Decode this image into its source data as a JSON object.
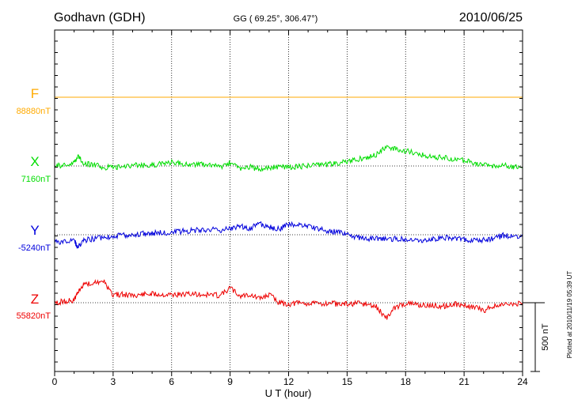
{
  "header": {
    "station": "Godhavn (GDH)",
    "coords": "GG ( 69.25°, 306.47°)",
    "date": "2010/06/25"
  },
  "footnote": "Plotted at 2010/11/19 05:39 UT",
  "colors": {
    "F": "#ffaa00",
    "X": "#00dd00",
    "Y": "#0000dd",
    "Z": "#ee0000"
  },
  "chart_data": {
    "type": "line",
    "xlabel": "U T (hour)",
    "xlim": [
      0,
      24
    ],
    "xticks": [
      "0",
      "3",
      "6",
      "9",
      "12",
      "15",
      "18",
      "21",
      "24"
    ],
    "grid": true,
    "scale_bar": {
      "label": "500 nT",
      "value_nT": 500
    },
    "x": [
      0,
      0.5,
      1,
      1.2,
      1.5,
      2,
      2.5,
      3,
      3.5,
      4,
      4.5,
      5,
      5.5,
      6,
      6.5,
      7,
      7.5,
      8,
      8.5,
      9,
      9.5,
      10,
      10.5,
      11,
      11.5,
      12,
      12.5,
      13,
      13.5,
      14,
      14.5,
      15,
      15.5,
      16,
      16.5,
      17,
      17.5,
      18,
      18.5,
      19,
      19.5,
      20,
      20.5,
      21,
      21.5,
      22,
      22.5,
      23,
      23.5,
      24
    ],
    "series": [
      {
        "name": "F",
        "baseline_label": "88880nT",
        "baseline": 88880,
        "values": [
          88880,
          88880,
          88880,
          88880,
          88880,
          88880,
          88880,
          88880,
          88880,
          88880,
          88880,
          88880,
          88880,
          88880,
          88880,
          88880,
          88880,
          88880,
          88880,
          88880,
          88880,
          88880,
          88880,
          88880,
          88880,
          88880,
          88880,
          88880,
          88880,
          88880,
          88880,
          88880,
          88880,
          88880,
          88880,
          88880,
          88880,
          88880,
          88880,
          88880,
          88880,
          88880,
          88880,
          88880,
          88880,
          88880,
          88880,
          88880,
          88880,
          88880
        ]
      },
      {
        "name": "X",
        "baseline_label": "7160nT",
        "baseline": 7160,
        "values": [
          7160,
          7165,
          7180,
          7235,
          7175,
          7170,
          7150,
          7150,
          7155,
          7165,
          7165,
          7170,
          7175,
          7185,
          7175,
          7170,
          7170,
          7165,
          7155,
          7185,
          7140,
          7155,
          7135,
          7150,
          7150,
          7150,
          7155,
          7160,
          7165,
          7170,
          7180,
          7190,
          7210,
          7220,
          7245,
          7300,
          7285,
          7270,
          7255,
          7235,
          7225,
          7220,
          7205,
          7200,
          7185,
          7165,
          7160,
          7165,
          7150,
          7150
        ]
      },
      {
        "name": "Y",
        "baseline_label": "-5240nT",
        "baseline": -5240,
        "values": [
          -5290,
          -5290,
          -5280,
          -5335,
          -5280,
          -5270,
          -5260,
          -5250,
          -5245,
          -5240,
          -5230,
          -5230,
          -5225,
          -5225,
          -5215,
          -5210,
          -5205,
          -5200,
          -5210,
          -5195,
          -5175,
          -5195,
          -5160,
          -5185,
          -5200,
          -5165,
          -5170,
          -5180,
          -5200,
          -5210,
          -5220,
          -5240,
          -5260,
          -5265,
          -5270,
          -5275,
          -5270,
          -5270,
          -5275,
          -5285,
          -5270,
          -5260,
          -5270,
          -5275,
          -5280,
          -5280,
          -5270,
          -5245,
          -5250,
          -5255
        ]
      },
      {
        "name": "Z",
        "baseline_label": "55820nT",
        "baseline": 55820,
        "values": [
          55820,
          55830,
          55840,
          55900,
          55960,
          55965,
          55975,
          55880,
          55880,
          55875,
          55880,
          55885,
          55880,
          55880,
          55880,
          55880,
          55880,
          55880,
          55870,
          55930,
          55870,
          55880,
          55850,
          55880,
          55820,
          55810,
          55820,
          55815,
          55810,
          55820,
          55810,
          55810,
          55815,
          55810,
          55790,
          55710,
          55790,
          55815,
          55810,
          55800,
          55800,
          55795,
          55810,
          55800,
          55790,
          55760,
          55795,
          55800,
          55810,
          55820
        ]
      }
    ]
  }
}
